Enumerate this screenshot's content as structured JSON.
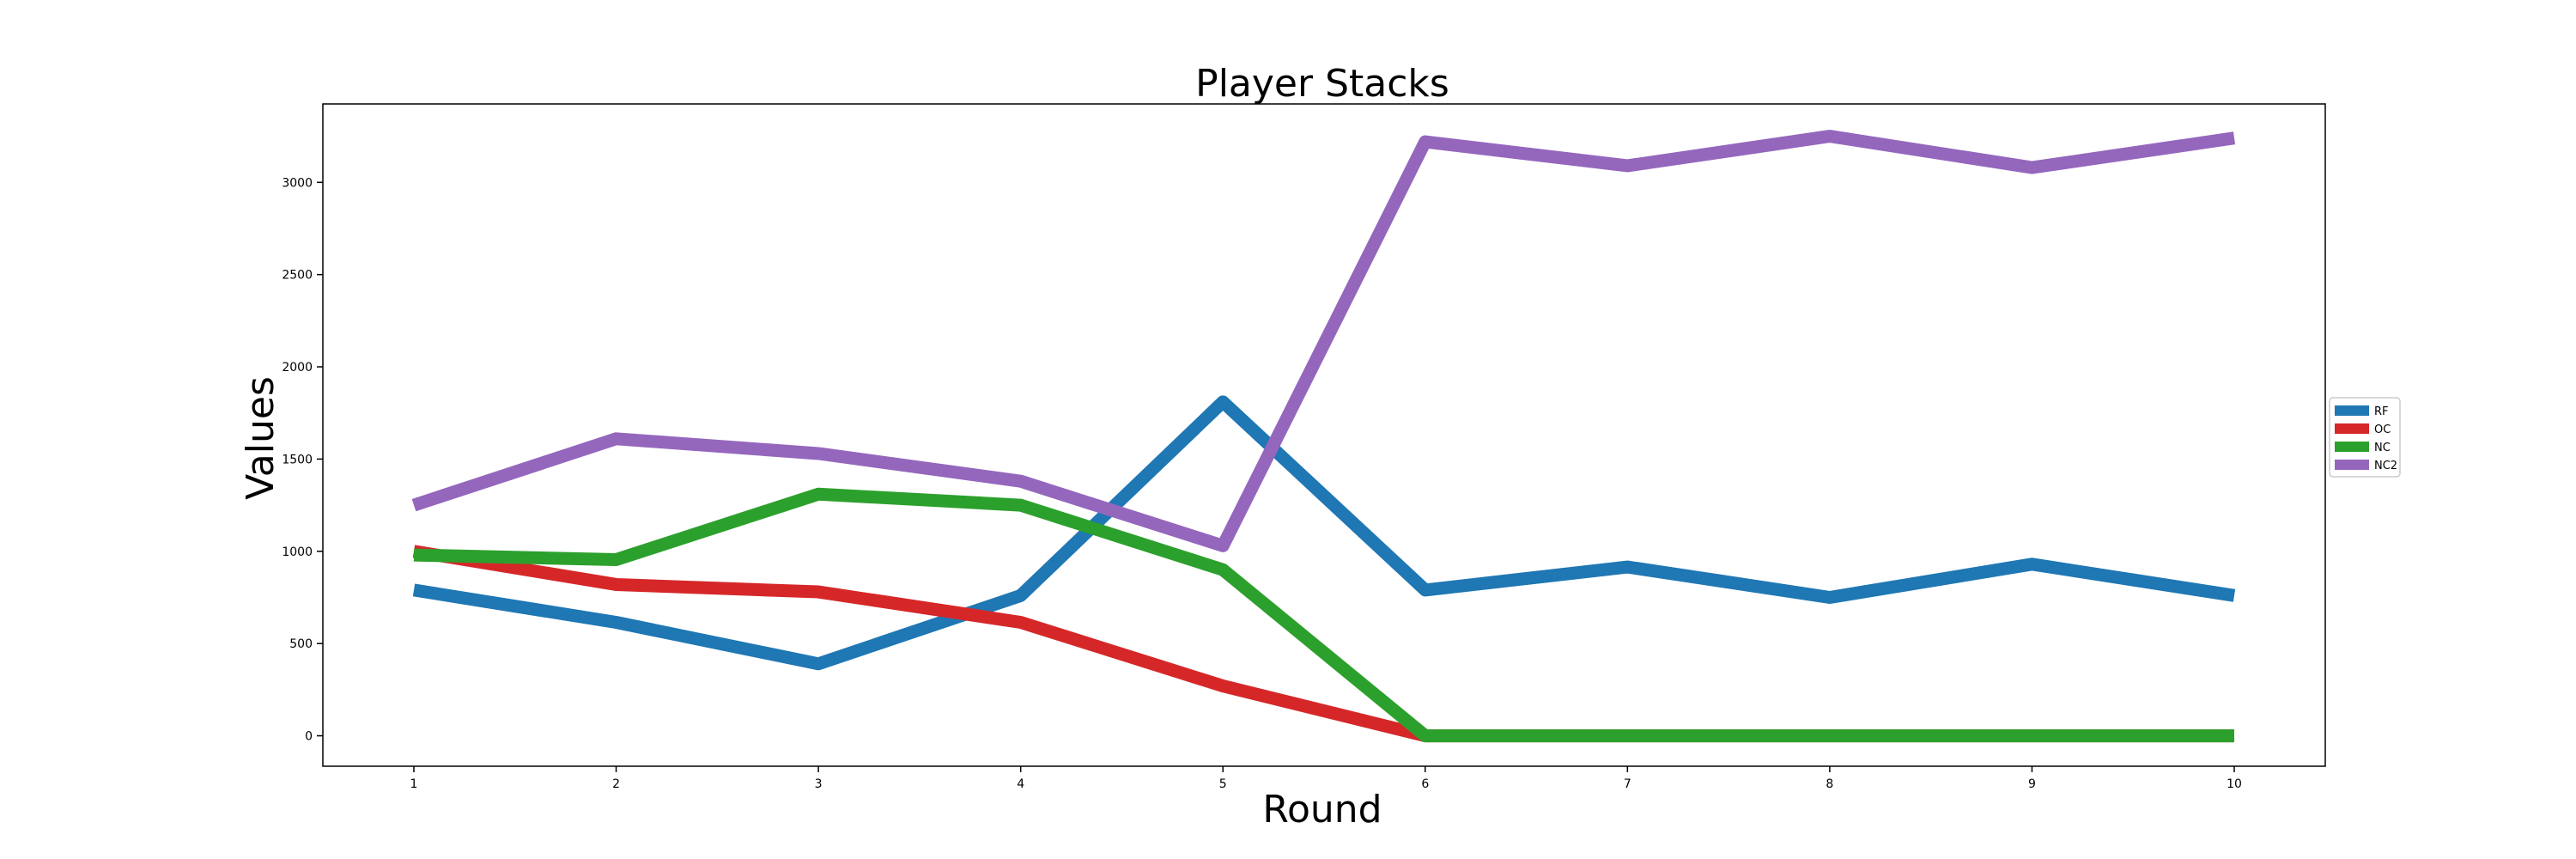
{
  "chart_data": {
    "type": "line",
    "title": "Player Stacks",
    "xlabel": "Round",
    "ylabel": "Values",
    "x": [
      1,
      2,
      3,
      4,
      5,
      6,
      7,
      8,
      9,
      10
    ],
    "xlim": [
      0.55,
      10.45
    ],
    "ylim": [
      -165,
      3425
    ],
    "yticks": [
      0,
      500,
      1000,
      1500,
      2000,
      2500,
      3000
    ],
    "grid": false,
    "legend_position": "center-right",
    "series": [
      {
        "name": "RF",
        "color": "#1f77b4",
        "values": [
          790,
          615,
          390,
          760,
          1810,
          790,
          915,
          750,
          930,
          760
        ]
      },
      {
        "name": "OC",
        "color": "#d62728",
        "values": [
          1000,
          820,
          780,
          615,
          270,
          0,
          0,
          0,
          0,
          0
        ]
      },
      {
        "name": "NC",
        "color": "#2ca02c",
        "values": [
          980,
          955,
          1310,
          1250,
          900,
          0,
          0,
          0,
          0,
          0
        ]
      },
      {
        "name": "NC2",
        "color": "#9467bd",
        "values": [
          1250,
          1610,
          1530,
          1380,
          1030,
          3220,
          3090,
          3250,
          3080,
          3240
        ]
      }
    ]
  }
}
